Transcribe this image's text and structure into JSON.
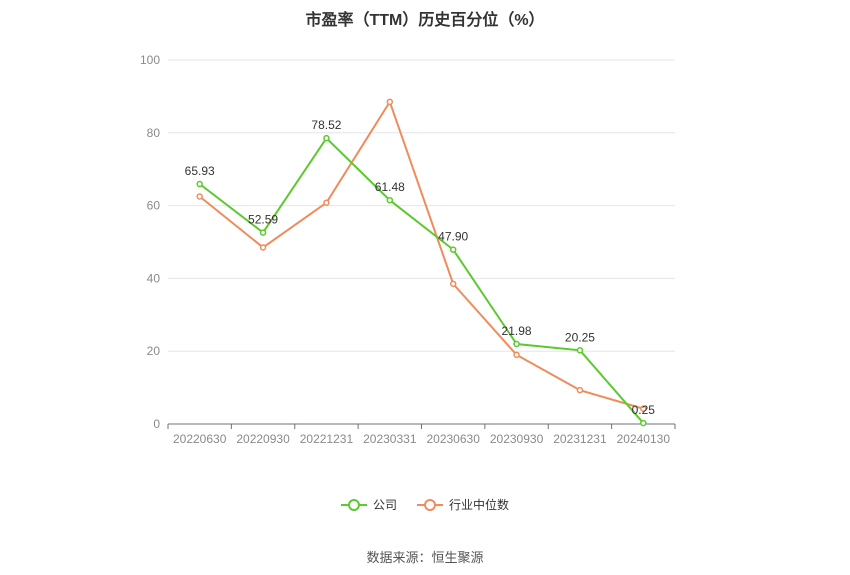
{
  "chart_data": {
    "type": "line",
    "title": "市盈率（TTM）历史百分位（%）",
    "categories": [
      "20220630",
      "20220930",
      "20221231",
      "20230331",
      "20230630",
      "20230930",
      "20231231",
      "20240130"
    ],
    "ylim": [
      0,
      100
    ],
    "yticks": [
      0,
      20,
      40,
      60,
      80,
      100
    ],
    "grid": true,
    "legend_position": "bottom",
    "series": [
      {
        "name": "公司",
        "color": "#5cc92e",
        "values": [
          65.93,
          52.59,
          78.52,
          61.48,
          47.9,
          21.98,
          20.25,
          0.25
        ],
        "labels": [
          "65.93",
          "52.59",
          "78.52",
          "61.48",
          "47.90",
          "21.98",
          "20.25",
          "0.25"
        ]
      },
      {
        "name": "行业中位数",
        "color": "#f08c5c",
        "values": [
          62.5,
          48.5,
          60.8,
          88.5,
          38.5,
          19.0,
          9.3,
          4.2
        ]
      }
    ]
  },
  "source": "数据来源：恒生聚源"
}
